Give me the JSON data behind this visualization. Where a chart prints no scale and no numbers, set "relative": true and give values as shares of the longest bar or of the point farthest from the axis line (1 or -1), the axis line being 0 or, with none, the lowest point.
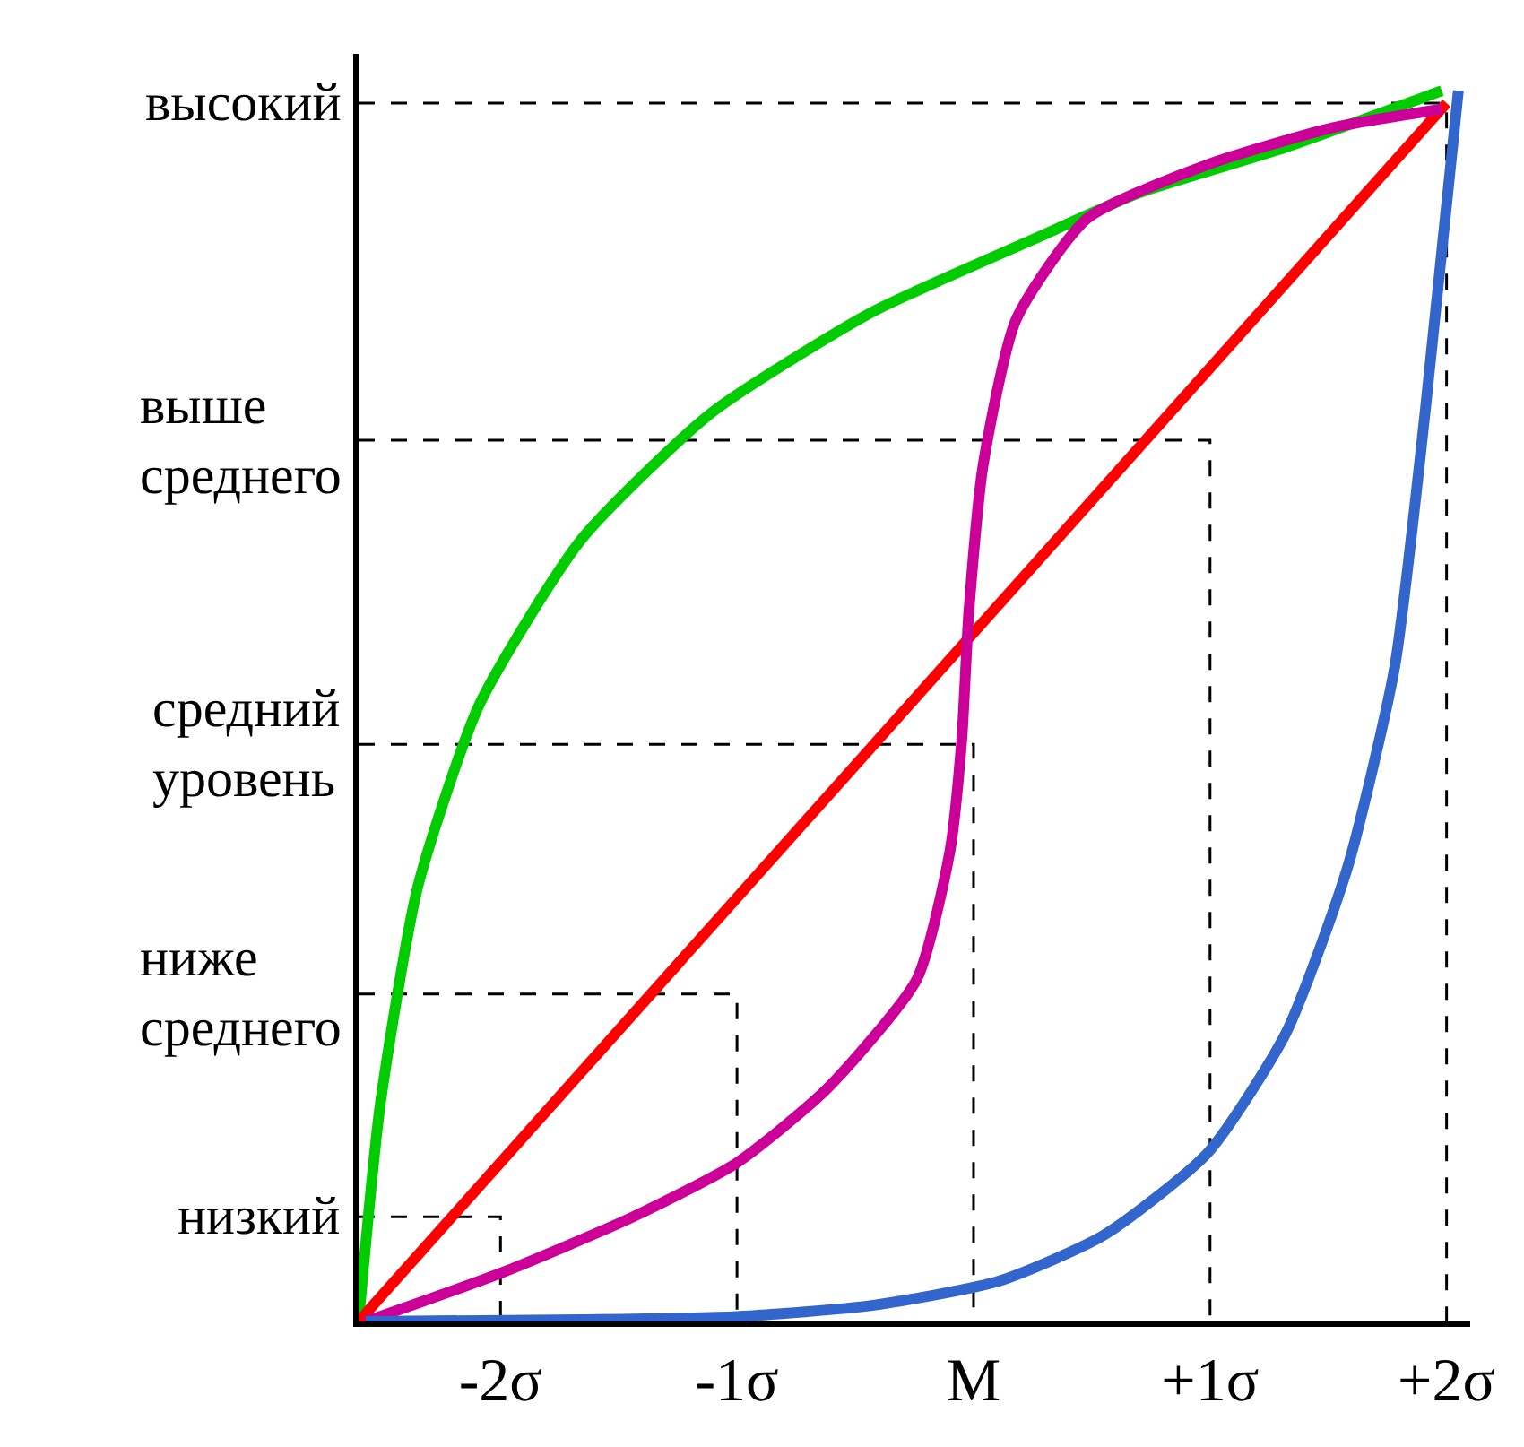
{
  "chart_data": {
    "type": "line",
    "relative": true,
    "marker": "none",
    "xlim": [
      -2.6,
      2.1
    ],
    "xticks": [
      {
        "value": -2,
        "label": "-2σ"
      },
      {
        "value": -1,
        "label": "-1σ"
      },
      {
        "value": 0,
        "label": "M"
      },
      {
        "value": 1,
        "label": "+1σ"
      },
      {
        "value": 2,
        "label": "+2σ"
      }
    ],
    "series": [
      {
        "name": "высокий",
        "color": "#000000",
        "line_style": "dashed",
        "x": [
          -2.6,
          2,
          2
        ],
        "values": [
          0.99,
          0.99,
          0
        ]
      },
      {
        "name": "выше\nсреднего",
        "color": "#000000",
        "line_style": "dashed",
        "x": [
          -2.6,
          1,
          1
        ],
        "values": [
          0.716,
          0.716,
          0
        ]
      },
      {
        "name": "средний\nуровень",
        "color": "#000000",
        "line_style": "dashed",
        "x": [
          -2.6,
          0,
          0
        ],
        "values": [
          0.469,
          0.469,
          0
        ]
      },
      {
        "name": "ниже\nсреднего",
        "color": "#000000",
        "line_style": "dashed",
        "x": [
          -2.6,
          -1,
          -1
        ],
        "values": [
          0.266,
          0.266,
          0
        ]
      },
      {
        "name": "низкий",
        "color": "#000000",
        "line_style": "dashed",
        "x": [
          -2.6,
          -2,
          -2
        ],
        "values": [
          0.085,
          0.085,
          0
        ]
      },
      {
        "color": "#00cc00",
        "line_style": "solid",
        "x": [
          -2.6,
          -2.51,
          -2.35,
          -2.09,
          -1.66,
          -1.11,
          -0.43,
          0.25,
          0.7,
          1.32,
          1.98
        ],
        "values": [
          0,
          0.174,
          0.353,
          0.501,
          0.635,
          0.738,
          0.82,
          0.879,
          0.917,
          0.954,
          1.0
        ]
      },
      {
        "color": "#ff0000",
        "line_style": "solid",
        "x": [
          -2.6,
          2
        ],
        "values": [
          0,
          0.99
        ]
      },
      {
        "color": "#cc0099",
        "line_style": "solid",
        "x": [
          -2.57,
          -1.99,
          -1.44,
          -1,
          -0.62,
          -0.24,
          -0.1,
          -0.05,
          -0.02,
          0.04,
          0.18,
          0.48,
          0.99,
          1.52,
          1.98
        ],
        "values": [
          0,
          0.04,
          0.085,
          0.129,
          0.189,
          0.278,
          0.382,
          0.472,
          0.576,
          0.695,
          0.814,
          0.896,
          0.94,
          0.97,
          0.985
        ]
      },
      {
        "color": "#3366cc",
        "line_style": "solid",
        "x": [
          -2.57,
          -1.66,
          -1,
          -0.43,
          0.11,
          0.55,
          0.99,
          1.32,
          1.58,
          1.78,
          1.91,
          2.05
        ],
        "values": [
          0,
          0.0015,
          0.004,
          0.013,
          0.033,
          0.07,
          0.137,
          0.234,
          0.368,
          0.531,
          0.74,
          1.0
        ]
      }
    ]
  }
}
